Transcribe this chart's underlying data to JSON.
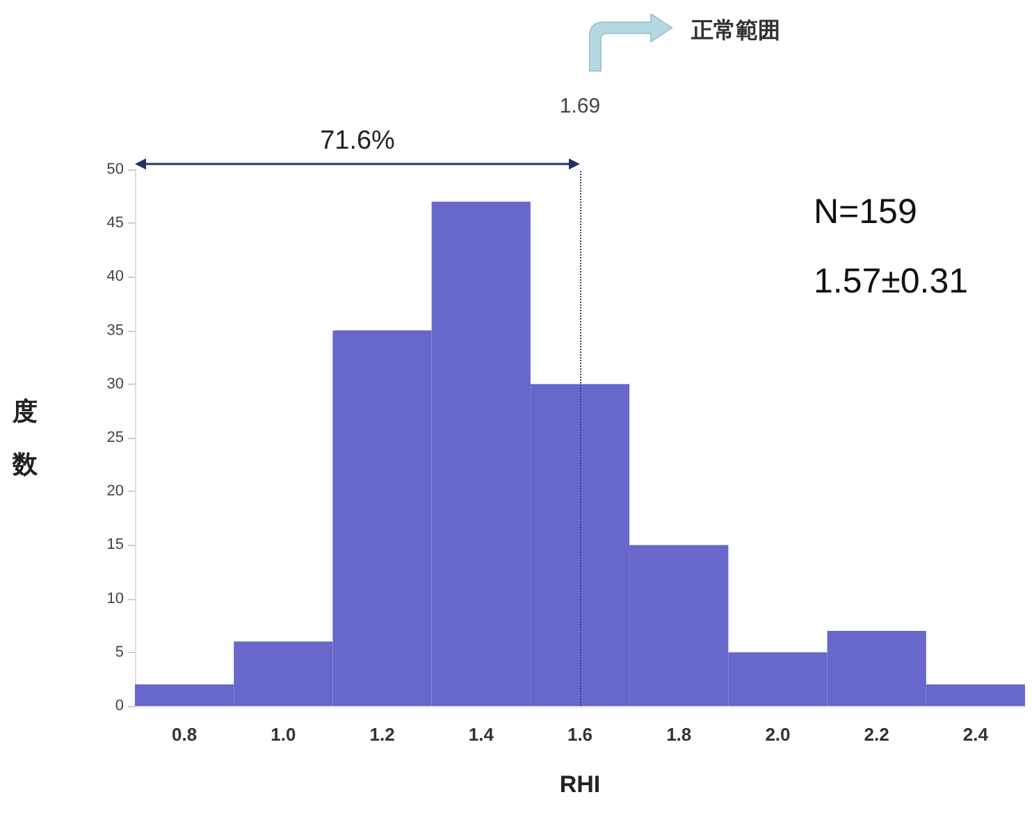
{
  "chart_data": {
    "type": "bar",
    "xlabel": "RHI",
    "ylabel": "度数",
    "categories": [
      "0.8",
      "1.0",
      "1.2",
      "1.4",
      "1.6",
      "1.8",
      "2.0",
      "2.2",
      "2.4"
    ],
    "values": [
      2,
      6,
      35,
      47,
      30,
      15,
      5,
      7,
      2
    ],
    "color": "#6767cc",
    "ylim": [
      0,
      50
    ],
    "yticks": [
      0,
      5,
      10,
      15,
      20,
      25,
      30,
      35,
      40,
      45,
      50
    ],
    "grid": false,
    "ref_lines": [
      {
        "axis": "x",
        "value": "1.6",
        "label": "1.69",
        "color": "#334477",
        "line_style": "dotted"
      }
    ],
    "annotations": [
      "71.6%",
      "正常範囲",
      "N=159",
      "1.57±0.31"
    ]
  }
}
